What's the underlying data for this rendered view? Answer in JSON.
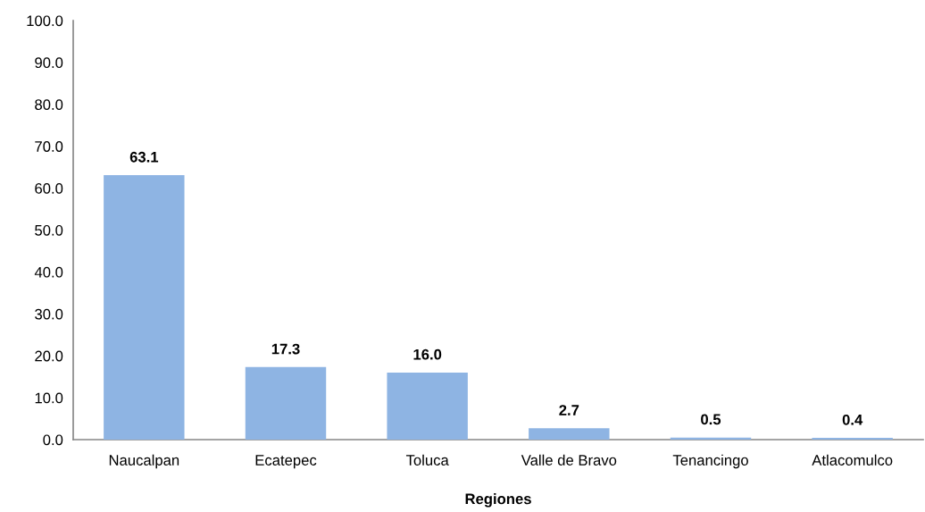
{
  "chart_data": {
    "type": "bar",
    "xlabel": "Regiones",
    "categories": [
      "Naucalpan",
      "Ecatepec",
      "Toluca",
      "Valle de Bravo",
      "Tenancingo",
      "Atlacomulco"
    ],
    "values": [
      63.1,
      17.3,
      16.0,
      2.7,
      0.5,
      0.4
    ],
    "value_labels": [
      "63.1",
      "17.3",
      "16.0",
      "2.7",
      "0.5",
      "0.4"
    ],
    "color": "#8eb4e3",
    "ylim": [
      0,
      100
    ],
    "yticks": [
      {
        "value": 0,
        "label": "0.0"
      },
      {
        "value": 10,
        "label": "10.0"
      },
      {
        "value": 20,
        "label": "20.0"
      },
      {
        "value": 30,
        "label": "30.0"
      },
      {
        "value": 40,
        "label": "40.0"
      },
      {
        "value": 50,
        "label": "50.0"
      },
      {
        "value": 60,
        "label": "60.0"
      },
      {
        "value": 70,
        "label": "70.0"
      },
      {
        "value": 80,
        "label": "80.0"
      },
      {
        "value": 90,
        "label": "90.0"
      },
      {
        "value": 100,
        "label": "100.0"
      }
    ],
    "grid": false,
    "legend": false
  }
}
